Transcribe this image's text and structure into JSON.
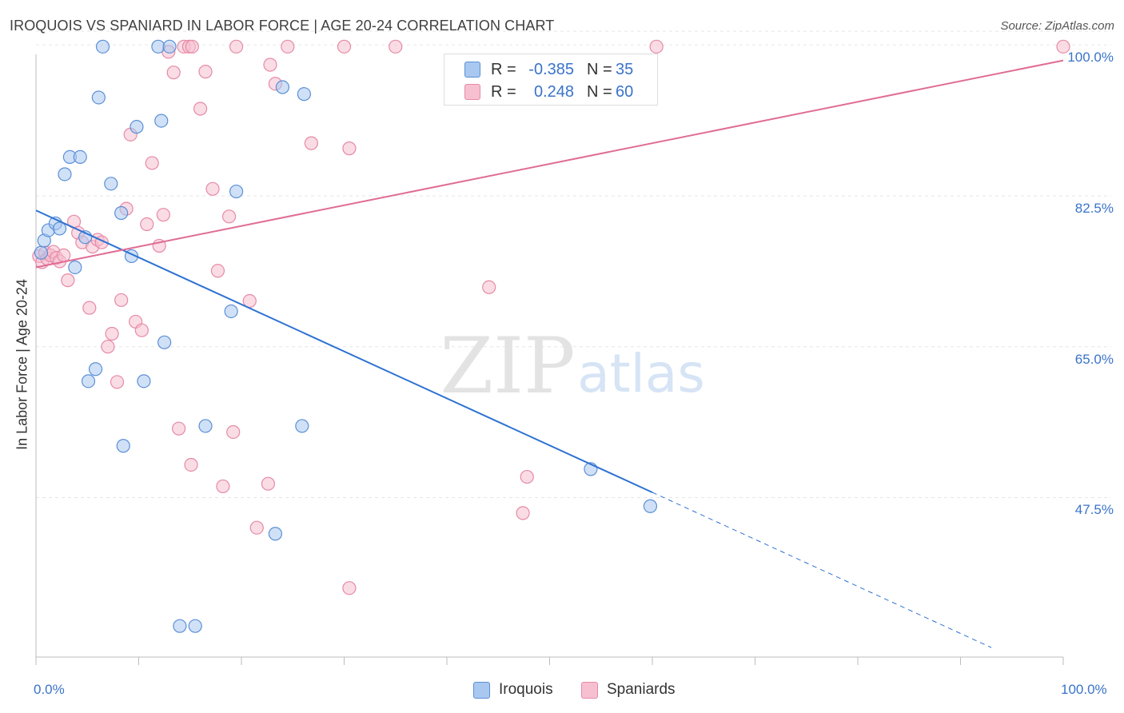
{
  "title": "IROQUOIS VS SPANIARD IN LABOR FORCE | AGE 20-24 CORRELATION CHART",
  "source": "Source: ZipAtlas.com",
  "watermark": {
    "zip": "ZIP",
    "atlas": "atlas"
  },
  "colors": {
    "iroquois_fill": "#a9c8f0",
    "iroquois_stroke": "#5b8fd6",
    "iroquois_line": "#2e72d2",
    "spaniards_fill": "#f6c0d0",
    "spaniards_stroke": "#e68aa6",
    "spaniards_line": "#e06c95",
    "tick_text": "#3a73c9",
    "grid": "#e6e6e6"
  },
  "legend": {
    "rows": [
      {
        "r_label": "R = ",
        "r_value": "-0.385",
        "n_label": "N = ",
        "n_value": "35"
      },
      {
        "r_label": "R = ",
        "r_value": "0.248",
        "n_label": "N = ",
        "n_value": "60"
      }
    ]
  },
  "chart_data": {
    "type": "scatter",
    "title": "IROQUOIS VS SPANIARD IN LABOR FORCE | AGE 20-24 CORRELATION CHART",
    "xlabel": "",
    "ylabel": "In Labor Force | Age 20-24",
    "xlim": [
      0,
      100
    ],
    "ylim": [
      29,
      101.5
    ],
    "x_tick_labels": [
      "0.0%",
      "100.0%"
    ],
    "y_ticks": [
      47.5,
      65.0,
      82.5,
      100.0
    ],
    "y_tick_labels": [
      "47.5%",
      "65.0%",
      "82.5%",
      "100.0%"
    ],
    "grid": true,
    "legend_position": "top-center",
    "series": [
      {
        "name": "Iroquois",
        "r": -0.385,
        "n": 35,
        "trend": {
          "x0": 0,
          "y0": 80.8,
          "x1": 60,
          "y1": 48.1,
          "dash_to_x": 93,
          "dash_to_y": 30.1
        },
        "points": [
          {
            "x": 0.5,
            "y": 75.9
          },
          {
            "x": 0.8,
            "y": 77.3
          },
          {
            "x": 1.2,
            "y": 78.5
          },
          {
            "x": 1.9,
            "y": 79.3
          },
          {
            "x": 2.3,
            "y": 78.7
          },
          {
            "x": 2.8,
            "y": 85.0
          },
          {
            "x": 3.3,
            "y": 87.0
          },
          {
            "x": 3.8,
            "y": 74.2
          },
          {
            "x": 4.3,
            "y": 87.0
          },
          {
            "x": 4.8,
            "y": 77.7
          },
          {
            "x": 5.1,
            "y": 61.0
          },
          {
            "x": 5.8,
            "y": 62.4
          },
          {
            "x": 6.1,
            "y": 93.9
          },
          {
            "x": 6.5,
            "y": 99.8
          },
          {
            "x": 7.3,
            "y": 83.9
          },
          {
            "x": 8.3,
            "y": 80.5
          },
          {
            "x": 8.5,
            "y": 53.5
          },
          {
            "x": 9.3,
            "y": 75.5
          },
          {
            "x": 9.8,
            "y": 90.5
          },
          {
            "x": 10.5,
            "y": 61.0
          },
          {
            "x": 11.9,
            "y": 99.8
          },
          {
            "x": 12.2,
            "y": 91.2
          },
          {
            "x": 12.5,
            "y": 65.5
          },
          {
            "x": 13.0,
            "y": 99.8
          },
          {
            "x": 14.0,
            "y": 32.6
          },
          {
            "x": 15.5,
            "y": 32.6
          },
          {
            "x": 16.5,
            "y": 55.8
          },
          {
            "x": 19.0,
            "y": 69.1
          },
          {
            "x": 19.5,
            "y": 83.0
          },
          {
            "x": 23.3,
            "y": 43.3
          },
          {
            "x": 24.0,
            "y": 95.1
          },
          {
            "x": 25.9,
            "y": 55.8
          },
          {
            "x": 26.1,
            "y": 94.3
          },
          {
            "x": 54.0,
            "y": 50.8
          },
          {
            "x": 59.8,
            "y": 46.5
          }
        ]
      },
      {
        "name": "Spaniards",
        "r": 0.248,
        "n": 60,
        "trend": {
          "x0": 0,
          "y0": 74.2,
          "x1": 100,
          "y1": 98.2
        },
        "points": [
          {
            "x": 0.3,
            "y": 75.5
          },
          {
            "x": 0.6,
            "y": 74.8
          },
          {
            "x": 0.9,
            "y": 75.9
          },
          {
            "x": 1.1,
            "y": 75.2
          },
          {
            "x": 1.4,
            "y": 75.6
          },
          {
            "x": 1.7,
            "y": 76.0
          },
          {
            "x": 2.0,
            "y": 75.3
          },
          {
            "x": 2.3,
            "y": 74.9
          },
          {
            "x": 2.7,
            "y": 75.6
          },
          {
            "x": 3.1,
            "y": 72.7
          },
          {
            "x": 3.7,
            "y": 79.5
          },
          {
            "x": 4.1,
            "y": 78.2
          },
          {
            "x": 4.5,
            "y": 77.1
          },
          {
            "x": 5.2,
            "y": 69.5
          },
          {
            "x": 5.5,
            "y": 76.6
          },
          {
            "x": 6.0,
            "y": 77.4
          },
          {
            "x": 6.4,
            "y": 77.1
          },
          {
            "x": 7.0,
            "y": 65.0
          },
          {
            "x": 7.4,
            "y": 66.5
          },
          {
            "x": 7.9,
            "y": 60.9
          },
          {
            "x": 8.3,
            "y": 70.4
          },
          {
            "x": 8.8,
            "y": 81.0
          },
          {
            "x": 9.2,
            "y": 89.6
          },
          {
            "x": 9.7,
            "y": 67.9
          },
          {
            "x": 10.3,
            "y": 66.9
          },
          {
            "x": 10.8,
            "y": 79.2
          },
          {
            "x": 11.3,
            "y": 86.3
          },
          {
            "x": 12.0,
            "y": 76.7
          },
          {
            "x": 12.4,
            "y": 80.3
          },
          {
            "x": 12.9,
            "y": 99.2
          },
          {
            "x": 13.4,
            "y": 96.8
          },
          {
            "x": 13.9,
            "y": 55.5
          },
          {
            "x": 14.4,
            "y": 99.8
          },
          {
            "x": 14.9,
            "y": 99.8
          },
          {
            "x": 15.2,
            "y": 99.8
          },
          {
            "x": 15.1,
            "y": 51.3
          },
          {
            "x": 16.0,
            "y": 92.6
          },
          {
            "x": 16.5,
            "y": 96.9
          },
          {
            "x": 17.2,
            "y": 83.3
          },
          {
            "x": 17.7,
            "y": 73.8
          },
          {
            "x": 18.2,
            "y": 48.8
          },
          {
            "x": 18.8,
            "y": 80.1
          },
          {
            "x": 19.2,
            "y": 55.1
          },
          {
            "x": 19.5,
            "y": 99.8
          },
          {
            "x": 20.8,
            "y": 70.3
          },
          {
            "x": 21.5,
            "y": 44.0
          },
          {
            "x": 22.6,
            "y": 49.1
          },
          {
            "x": 22.8,
            "y": 97.7
          },
          {
            "x": 23.3,
            "y": 95.5
          },
          {
            "x": 24.5,
            "y": 99.8
          },
          {
            "x": 26.8,
            "y": 88.6
          },
          {
            "x": 30.0,
            "y": 99.8
          },
          {
            "x": 30.5,
            "y": 37.0
          },
          {
            "x": 30.5,
            "y": 88.0
          },
          {
            "x": 35.0,
            "y": 99.8
          },
          {
            "x": 44.1,
            "y": 71.9
          },
          {
            "x": 47.8,
            "y": 49.9
          },
          {
            "x": 47.4,
            "y": 45.7
          },
          {
            "x": 60.4,
            "y": 99.8
          },
          {
            "x": 100.0,
            "y": 99.8
          }
        ]
      }
    ]
  }
}
